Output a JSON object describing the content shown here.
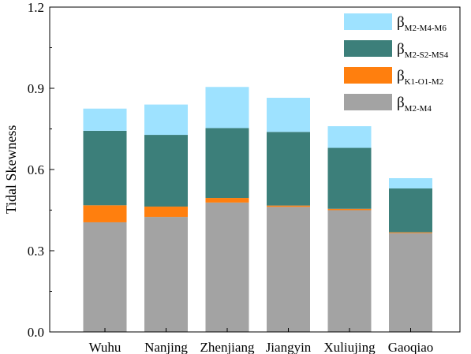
{
  "chart_data": {
    "type": "bar",
    "stacked": true,
    "categories": [
      "Wuhu",
      "Nanjing",
      "Zhenjiang",
      "Jiangyin",
      "Xuliujing",
      "Gaoqiao"
    ],
    "ylabel": "Tidal Skewness",
    "ylim": [
      0.0,
      1.2
    ],
    "yticks": [
      "0.0",
      "0.3",
      "0.6",
      "0.9",
      "1.2"
    ],
    "grid": false,
    "legend_position": "top-right",
    "series": [
      {
        "name_main": "β",
        "name_sub": "M2-M4",
        "color": "#a3a3a3",
        "values": [
          0.405,
          0.425,
          0.478,
          0.462,
          0.45,
          0.365
        ]
      },
      {
        "name_main": "β",
        "name_sub": "K1-O1-M2",
        "color": "#ff7f0e",
        "values": [
          0.063,
          0.038,
          0.017,
          0.005,
          0.005,
          0.003
        ]
      },
      {
        "name_main": "β",
        "name_sub": "M2-S2-MS4",
        "color": "#3c7f7a",
        "values": [
          0.275,
          0.265,
          0.258,
          0.272,
          0.225,
          0.162
        ]
      },
      {
        "name_main": "β",
        "name_sub": "M2-M4-M6",
        "color": "#9ee2ff",
        "values": [
          0.082,
          0.112,
          0.152,
          0.126,
          0.08,
          0.038
        ]
      }
    ]
  }
}
